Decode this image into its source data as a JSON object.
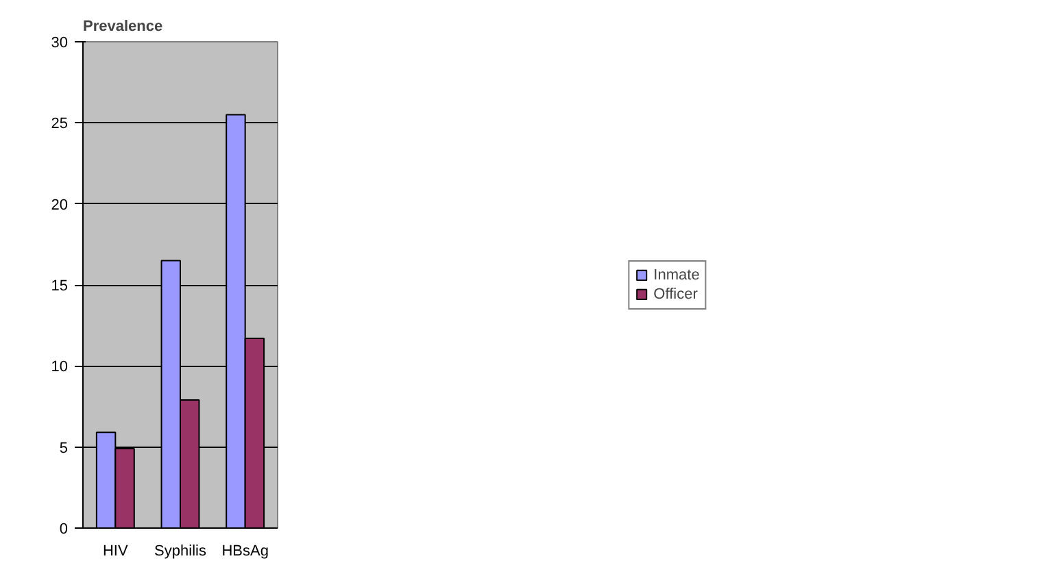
{
  "chart_data": {
    "type": "bar",
    "ylabel": "Prevalence",
    "categories": [
      "HIV",
      "Syphilis",
      "HBsAg"
    ],
    "series": [
      {
        "name": "Inmate",
        "color": "#9999ff",
        "values": [
          5.9,
          16.5,
          25.5
        ]
      },
      {
        "name": "Officer",
        "color": "#993366",
        "values": [
          4.9,
          7.9,
          11.7
        ]
      }
    ],
    "ylim": [
      0,
      30
    ],
    "yticks": [
      0,
      5,
      10,
      15,
      20,
      25,
      30
    ],
    "grid": "y",
    "legend": "right"
  }
}
